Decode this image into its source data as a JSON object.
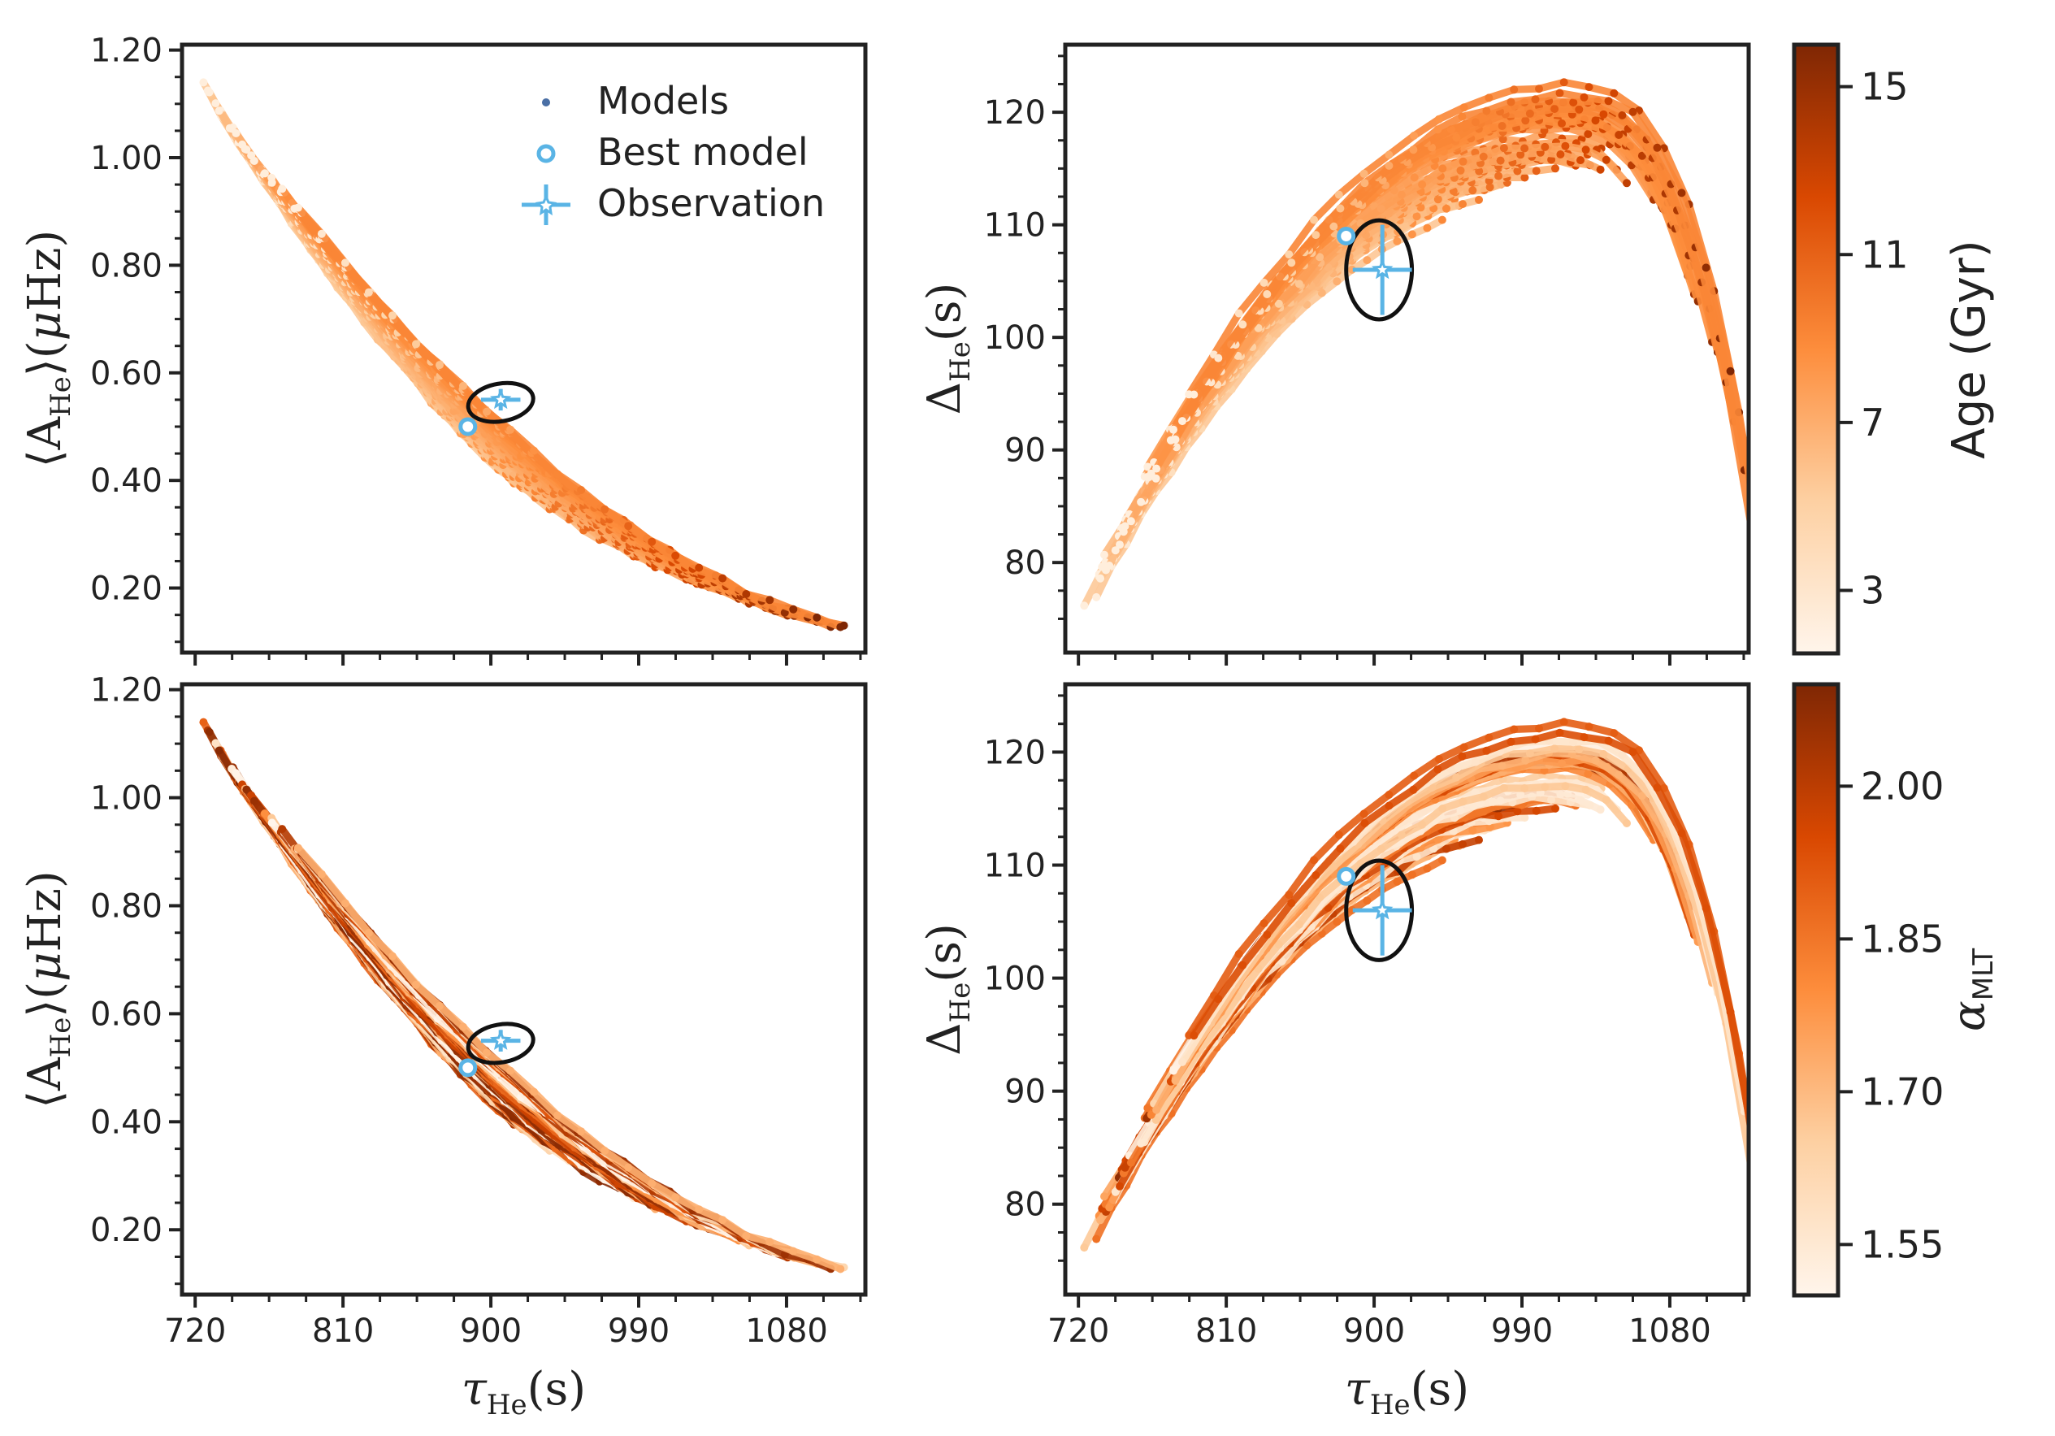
{
  "chart_data": [
    {
      "type": "scatter",
      "panel": "top-left",
      "xlabel": "τHe(s)",
      "ylabel": "⟨AHe⟩(μHz)",
      "xlim": [
        712,
        1128
      ],
      "ylim": [
        0.08,
        1.21
      ],
      "xticks": [
        720,
        810,
        900,
        990,
        1080
      ],
      "yticks": [
        0.2,
        0.4,
        0.6,
        0.8,
        1.0,
        1.2
      ],
      "ytick_labels": [
        "0.20",
        "0.40",
        "0.60",
        "0.80",
        "1.00",
        "1.20"
      ],
      "color_by": "age",
      "best_model": {
        "x": 886,
        "y": 0.5
      },
      "observation": {
        "x": 906,
        "y": 0.55,
        "xerr": 12,
        "yerr": 0.02
      },
      "error_ellipse": {
        "cx": 906,
        "cy": 0.545,
        "rx": 20,
        "ry": 0.035
      }
    },
    {
      "type": "scatter",
      "panel": "top-right",
      "xlabel": "τHe(s)",
      "ylabel": "ΔHe(s)",
      "xlim": [
        712,
        1128
      ],
      "ylim": [
        72,
        126
      ],
      "xticks": [
        720,
        810,
        900,
        990,
        1080
      ],
      "yticks": [
        80,
        90,
        100,
        110,
        120
      ],
      "color_by": "age",
      "best_model": {
        "x": 883,
        "y": 109
      },
      "observation": {
        "x": 905,
        "y": 106,
        "xerr": 18,
        "yerr": 4
      },
      "error_ellipse": {
        "cx": 903,
        "cy": 106,
        "rx": 20,
        "ry": 4.4
      }
    },
    {
      "type": "scatter",
      "panel": "bottom-left",
      "xlabel": "τHe(s)",
      "ylabel": "⟨AHe⟩(μHz)",
      "xlim": [
        712,
        1128
      ],
      "ylim": [
        0.08,
        1.21
      ],
      "xticks": [
        720,
        810,
        900,
        990,
        1080
      ],
      "yticks": [
        0.2,
        0.4,
        0.6,
        0.8,
        1.0,
        1.2
      ],
      "ytick_labels": [
        "0.20",
        "0.40",
        "0.60",
        "0.80",
        "1.00",
        "1.20"
      ],
      "color_by": "alpha_mlt",
      "best_model": {
        "x": 886,
        "y": 0.5
      },
      "observation": {
        "x": 906,
        "y": 0.55,
        "xerr": 12,
        "yerr": 0.02
      },
      "error_ellipse": {
        "cx": 906,
        "cy": 0.545,
        "rx": 20,
        "ry": 0.035
      }
    },
    {
      "type": "scatter",
      "panel": "bottom-right",
      "xlabel": "τHe(s)",
      "ylabel": "ΔHe(s)",
      "xlim": [
        712,
        1128
      ],
      "ylim": [
        72,
        126
      ],
      "xticks": [
        720,
        810,
        900,
        990,
        1080
      ],
      "yticks": [
        80,
        90,
        100,
        110,
        120
      ],
      "color_by": "alpha_mlt",
      "best_model": {
        "x": 883,
        "y": 109
      },
      "observation": {
        "x": 905,
        "y": 106,
        "xerr": 18,
        "yerr": 4
      },
      "error_ellipse": {
        "cx": 903,
        "cy": 106,
        "rx": 20,
        "ry": 4.4
      }
    }
  ],
  "legend": {
    "placement": "top-right of top-left panel",
    "entries": [
      "Models",
      "Best model",
      "Observation"
    ]
  },
  "colorbars": [
    {
      "label": "Age (Gyr)",
      "range": [
        1.5,
        16.0
      ],
      "ticks": [
        3,
        7,
        11,
        15
      ],
      "tick_labels": [
        "3",
        "7",
        "11",
        "15"
      ]
    },
    {
      "label": "αMLT",
      "range": [
        1.5,
        2.1
      ],
      "ticks": [
        1.55,
        1.7,
        1.85,
        2.0
      ],
      "tick_labels": [
        "1.55",
        "1.70",
        "1.85",
        "2.00"
      ]
    }
  ],
  "colors": {
    "cmap_low": "#fff5eb",
    "cmap_mid": "#f58d3e",
    "cmap_high": "#7f2704",
    "observation": "#5ab4e5",
    "best_model": "#5ab4e5",
    "ellipse": "#111111",
    "models_legend_dot": "#4a6fa5"
  }
}
